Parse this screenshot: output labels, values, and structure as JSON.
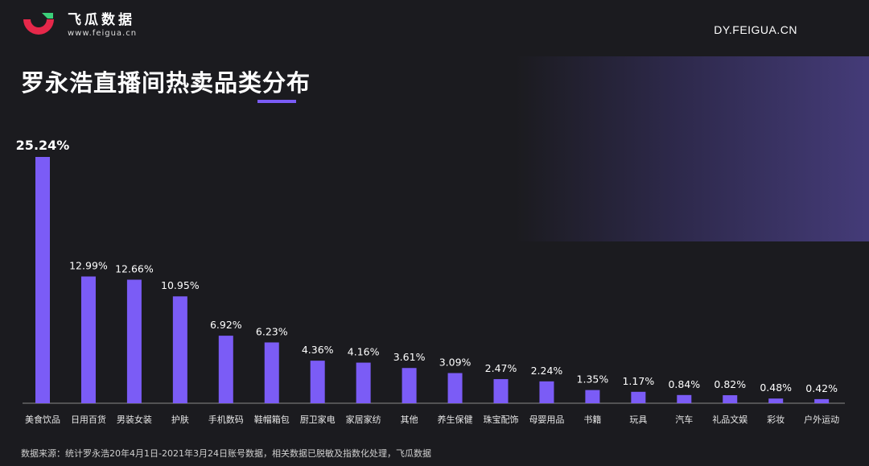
{
  "brand": {
    "name": "飞瓜数据",
    "url": "www.feigua.cn",
    "logo_icon": "feigua-logo-icon",
    "site": "DY.FEIGUA.CN"
  },
  "title": "罗永浩直播间热卖品类分布",
  "footer": "数据来源：统计罗永浩20年4月1日-2021年3月24日账号数据，相关数据已脱敏及指数化处理，飞瓜数据",
  "colors": {
    "bar": "#7b5cf6",
    "accent": "#7b5cf6",
    "background": "#1b1b1f",
    "logo_red": "#e6284a",
    "logo_green": "#3ccf7a"
  },
  "chart_data": {
    "type": "bar",
    "categories": [
      "美食饮品",
      "日用百货",
      "男装女装",
      "护肤",
      "手机数码",
      "鞋帽箱包",
      "厨卫家电",
      "家居家纺",
      "其他",
      "养生保健",
      "珠宝配饰",
      "母婴用品",
      "书籍",
      "玩具",
      "汽车",
      "礼品文娱",
      "彩妆",
      "户外运动"
    ],
    "values": [
      25.24,
      12.99,
      12.66,
      10.95,
      6.92,
      6.23,
      4.36,
      4.16,
      3.61,
      3.09,
      2.47,
      2.24,
      1.35,
      1.17,
      0.84,
      0.82,
      0.48,
      0.42
    ],
    "labels": [
      "25.24%",
      "12.99%",
      "12.66%",
      "10.95%",
      "6.92%",
      "6.23%",
      "4.36%",
      "4.16%",
      "3.61%",
      "3.09%",
      "2.47%",
      "2.24%",
      "1.35%",
      "1.17%",
      "0.84%",
      "0.82%",
      "0.48%",
      "0.42%"
    ],
    "ylim": [
      0,
      25.24
    ],
    "grid": false,
    "legend": "none"
  }
}
